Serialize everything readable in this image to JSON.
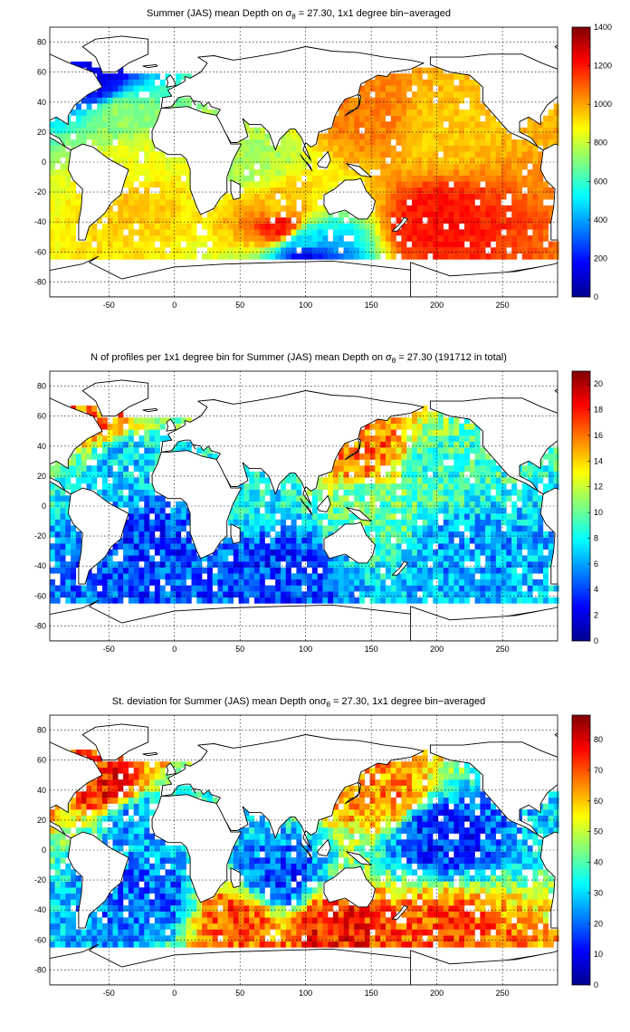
{
  "chart_data": [
    {
      "type": "heatmap",
      "title_parts": [
        "Summer (JAS) mean Depth on ",
        "σ",
        "θ",
        " = 27.30, 1x1 degree bin−averaged"
      ],
      "xlim": [
        -95,
        292
      ],
      "ylim": [
        -90,
        90
      ],
      "xticks": [
        -50,
        0,
        50,
        100,
        150,
        200,
        250
      ],
      "yticks": [
        -80,
        -60,
        -40,
        -20,
        0,
        20,
        40,
        60,
        80
      ],
      "colorbar": {
        "min": 0,
        "max": 1400,
        "ticks": [
          0,
          200,
          400,
          600,
          800,
          1000,
          1200,
          1400
        ]
      },
      "colormap": "jet",
      "field": [
        {
          "lon": -60,
          "lat": 55,
          "value": 150
        },
        {
          "lon": -40,
          "lat": 30,
          "value": 720
        },
        {
          "lon": -30,
          "lat": 0,
          "value": 850
        },
        {
          "lon": -30,
          "lat": -25,
          "value": 950
        },
        {
          "lon": 60,
          "lat": 0,
          "value": 760
        },
        {
          "lon": 80,
          "lat": -30,
          "value": 950
        },
        {
          "lon": 80,
          "lat": -42,
          "value": 1200
        },
        {
          "lon": 150,
          "lat": 30,
          "value": 1050
        },
        {
          "lon": 200,
          "lat": 20,
          "value": 950
        },
        {
          "lon": 200,
          "lat": -40,
          "value": 1200
        },
        {
          "lon": 100,
          "lat": -55,
          "value": 500
        },
        {
          "lon": 100,
          "lat": -62,
          "value": 150
        }
      ]
    },
    {
      "type": "heatmap",
      "title_parts": [
        "N of profiles per 1x1 degree bin for Summer (JAS) mean Depth on ",
        "σ",
        "θ",
        " = 27.30 (191712 in total)"
      ],
      "xlim": [
        -95,
        292
      ],
      "ylim": [
        -90,
        90
      ],
      "xticks": [
        -50,
        0,
        50,
        100,
        150,
        200,
        250
      ],
      "yticks": [
        -80,
        -60,
        -40,
        -20,
        0,
        20,
        40,
        60,
        80
      ],
      "colorbar": {
        "min": 0,
        "max": 21,
        "ticks": [
          0,
          2,
          4,
          6,
          8,
          10,
          12,
          14,
          16,
          18,
          20
        ]
      },
      "colormap": "jet",
      "field": [
        {
          "lon": -60,
          "lat": 58,
          "value": 16
        },
        {
          "lon": -40,
          "lat": 30,
          "value": 7
        },
        {
          "lon": -20,
          "lat": -25,
          "value": 4
        },
        {
          "lon": 60,
          "lat": 10,
          "value": 8
        },
        {
          "lon": 80,
          "lat": -40,
          "value": 4
        },
        {
          "lon": 145,
          "lat": 35,
          "value": 16
        },
        {
          "lon": 200,
          "lat": 20,
          "value": 9
        },
        {
          "lon": 220,
          "lat": -30,
          "value": 6
        },
        {
          "lon": 150,
          "lat": 0,
          "value": 10
        }
      ]
    },
    {
      "type": "heatmap",
      "title_parts": [
        "St. deviation for Summer (JAS) mean Depth on",
        "σ",
        "θ",
        " = 27.30, 1x1 degree bin−averaged"
      ],
      "xlim": [
        -95,
        292
      ],
      "ylim": [
        -90,
        90
      ],
      "xticks": [
        -50,
        0,
        50,
        100,
        150,
        200,
        250
      ],
      "yticks": [
        -80,
        -60,
        -40,
        -20,
        0,
        20,
        40,
        60,
        80
      ],
      "colorbar": {
        "min": 0,
        "max": 88,
        "ticks": [
          0,
          10,
          20,
          30,
          40,
          50,
          60,
          70,
          80
        ]
      },
      "colormap": "jet",
      "field": [
        {
          "lon": -50,
          "lat": 42,
          "value": 75
        },
        {
          "lon": -30,
          "lat": 20,
          "value": 25
        },
        {
          "lon": -20,
          "lat": -30,
          "value": 20
        },
        {
          "lon": 50,
          "lat": -45,
          "value": 70
        },
        {
          "lon": 120,
          "lat": -50,
          "value": 75
        },
        {
          "lon": 200,
          "lat": -55,
          "value": 70
        },
        {
          "lon": 160,
          "lat": 38,
          "value": 65
        },
        {
          "lon": 200,
          "lat": 10,
          "value": 15
        },
        {
          "lon": 80,
          "lat": -20,
          "value": 18
        }
      ]
    }
  ]
}
